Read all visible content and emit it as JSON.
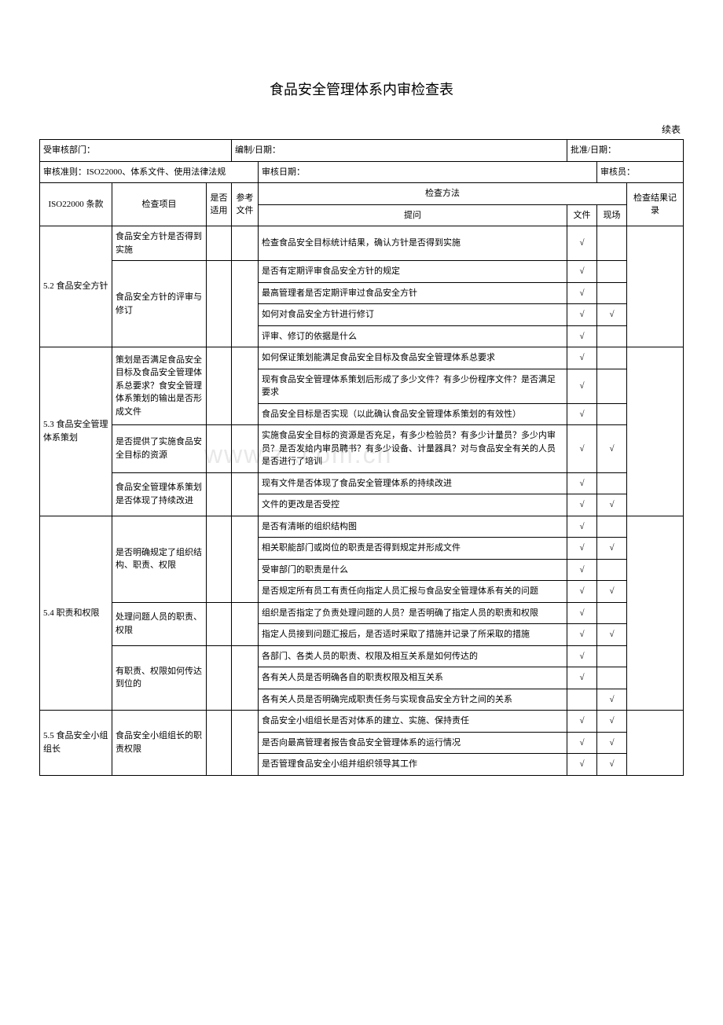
{
  "title": "食品安全管理体系内审检查表",
  "cont_label": "续表",
  "header": {
    "dept_label": "受审核部门：",
    "prep_label": "编制/日期：",
    "approve_label": "批准/日期：",
    "criteria_label": "审核准则：ISO22000、体系文件、使用法律法规",
    "audit_date_label": "审核日期：",
    "auditor_label": "审核员："
  },
  "columns": {
    "clause": "ISO22000 条款",
    "item": "检查项目",
    "apply": "是否适用",
    "ref": "参考文件",
    "method": "检查方法",
    "question": "提问",
    "doc": "文件",
    "site": "现场",
    "record": "检查结果记录"
  },
  "check": "√",
  "sections": [
    {
      "clause": "5.2 食品安全方针",
      "groups": [
        {
          "item": "食品安全方针是否得到实施",
          "rows": [
            {
              "q": "检查食品安全目标统计结果，确认方针是否得到实施",
              "doc": true,
              "site": false
            }
          ]
        },
        {
          "item": "食品安全方针的评审与修订",
          "rows": [
            {
              "q": "是否有定期评审食品安全方针的规定",
              "doc": true,
              "site": false
            },
            {
              "q": "最高管理者是否定期评审过食品安全方针",
              "doc": true,
              "site": false
            },
            {
              "q": "如何对食品安全方针进行修订",
              "doc": true,
              "site": true
            },
            {
              "q": "评审、修订的依据是什么",
              "doc": true,
              "site": false
            }
          ]
        }
      ]
    },
    {
      "clause": "5.3 食品安全管理体系策划",
      "groups": [
        {
          "item": "策划是否满足食品安全目标及食品安全管理体系总要求？食安全管理体系策划的输出是否形成文件",
          "rows": [
            {
              "q": "如何保证策划能满足食品安全目标及食品安全管理体系总要求",
              "doc": true,
              "site": false
            },
            {
              "q": "现有食品安全管理体系策划后形成了多少文件？有多少份程序文件？是否满足要求",
              "doc": true,
              "site": false
            },
            {
              "q": "食品安全目标是否实现（以此确认食品安全管理体系策划的有效性）",
              "doc": true,
              "site": false
            }
          ]
        },
        {
          "item": "是否提供了实施食品安全目标的资源",
          "rows": [
            {
              "q": "实施食品安全目标的资源是否充足，有多少检验员？有多少计量员？多少内审员？是否发给内审员聘书？有多少设备、计量器具？对与食品安全有关的人员是否进行了培训",
              "doc": true,
              "site": true
            }
          ]
        },
        {
          "item": "食品安全管理体系策划是否体现了持续改进",
          "rows": [
            {
              "q": "现有文件是否体现了食品安全管理体系的持续改进",
              "doc": true,
              "site": false
            },
            {
              "q": "文件的更改是否受控",
              "doc": true,
              "site": true
            }
          ]
        }
      ]
    },
    {
      "clause": "5.4 职责和权限",
      "groups": [
        {
          "item": "是否明确规定了组织结构、职责、权限",
          "rows": [
            {
              "q": "是否有清晰的组织结构图",
              "doc": true,
              "site": false
            },
            {
              "q": "相关职能部门或岗位的职责是否得到规定并形成文件",
              "doc": true,
              "site": true
            },
            {
              "q": "受审部门的职责是什么",
              "doc": true,
              "site": false
            },
            {
              "q": "是否规定所有员工有责任向指定人员汇报与食品安全管理体系有关的问题",
              "doc": true,
              "site": true
            }
          ]
        },
        {
          "item": "处理问题人员的职责、权限",
          "rows": [
            {
              "q": "组织是否指定了负责处理问题的人员？是否明确了指定人员的职责和权限",
              "doc": true,
              "site": false
            },
            {
              "q": "指定人员接到问题汇报后，是否适时采取了措施并记录了所采取的措施",
              "doc": true,
              "site": true
            }
          ]
        },
        {
          "item": "有职责、权限如何传达到位的",
          "rows": [
            {
              "q": "各部门、各类人员的职责、权限及相互关系是如何传达的",
              "doc": true,
              "site": false
            },
            {
              "q": "各有关人员是否明确各自的职责权限及相互关系",
              "doc": true,
              "site": false
            },
            {
              "q": "各有关人员是否明确完成职责任务与实现食品安全方针之间的关系",
              "doc": false,
              "site": true
            }
          ]
        }
      ]
    },
    {
      "clause": "5.5 食品安全小组组长",
      "groups": [
        {
          "item": "食品安全小组组长的职责权限",
          "rows": [
            {
              "q": "食品安全小组组长是否对体系的建立、实施、保持责任",
              "doc": true,
              "site": true
            },
            {
              "q": "是否向最高管理者报告食品安全管理体系的运行情况",
              "doc": true,
              "site": true
            },
            {
              "q": "是否管理食品安全小组并组织领导其工作",
              "doc": true,
              "site": true
            }
          ]
        }
      ]
    }
  ]
}
